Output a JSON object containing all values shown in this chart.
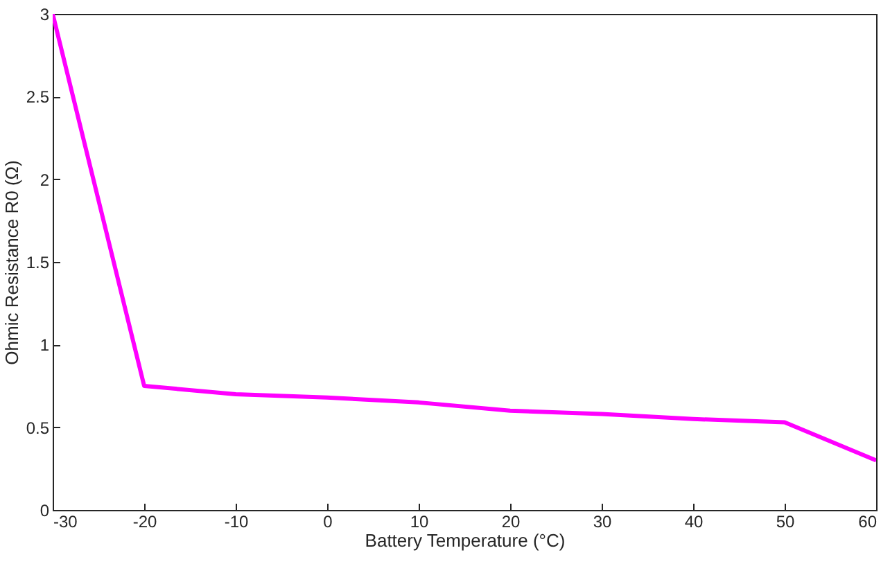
{
  "chart_data": {
    "type": "line",
    "xlabel": "Battery Temperature (°C)",
    "ylabel": "Ohmic Resistance R0 (Ω)",
    "x": [
      -30,
      -20,
      -10,
      0,
      10,
      20,
      30,
      40,
      50,
      60
    ],
    "series": [
      {
        "color": "#ff00ff",
        "values": [
          3.0,
          0.75,
          0.7,
          0.68,
          0.65,
          0.6,
          0.58,
          0.55,
          0.53,
          0.3
        ]
      }
    ],
    "xlim": [
      -30,
      60
    ],
    "xticks": [
      -30,
      -20,
      -10,
      0,
      10,
      20,
      30,
      40,
      50,
      60
    ],
    "ylim": [
      0,
      3
    ],
    "yticks": [
      0,
      0.5,
      1,
      1.5,
      2,
      2.5,
      3
    ],
    "grid": false,
    "marker": "none",
    "line_style": "solid"
  }
}
